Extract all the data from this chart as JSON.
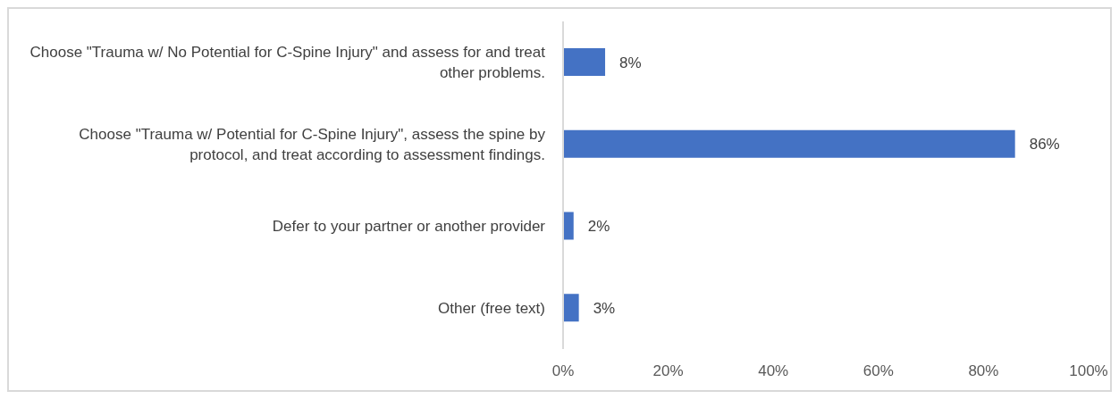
{
  "chart_data": {
    "type": "bar",
    "orientation": "horizontal",
    "categories": [
      "Choose \"Trauma w/ No Potential for C-Spine Injury\" and assess for and treat other problems.",
      "Choose \"Trauma w/ Potential for C-Spine Injury\", assess the spine by protocol, and treat according to assessment findings.",
      "Defer to your partner or another provider",
      "Other (free text)"
    ],
    "values": [
      8,
      86,
      2,
      3
    ],
    "value_labels": [
      "8%",
      "86%",
      "2%",
      "3%"
    ],
    "color": "#4472c4",
    "xlim": [
      0,
      100
    ],
    "xticks": [
      {
        "value": 0,
        "label": "0%"
      },
      {
        "value": 20,
        "label": "20%"
      },
      {
        "value": 40,
        "label": "40%"
      },
      {
        "value": 60,
        "label": "60%"
      },
      {
        "value": 80,
        "label": "80%"
      },
      {
        "value": 100,
        "label": "100%"
      }
    ],
    "grid": false,
    "legend": false
  }
}
